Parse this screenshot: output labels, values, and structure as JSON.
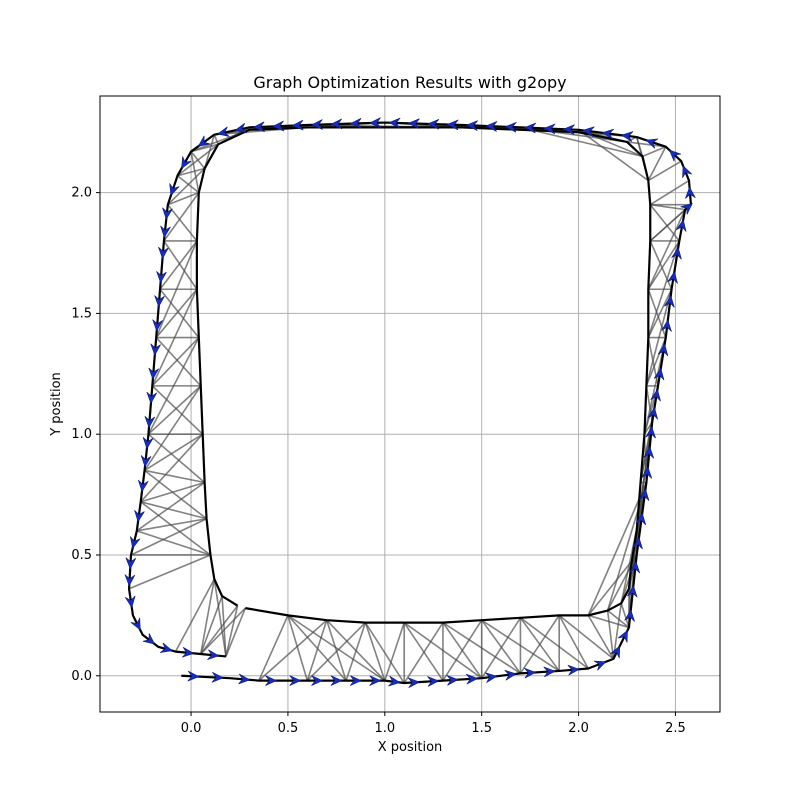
{
  "chart_data": {
    "type": "line",
    "title": "Graph Optimization Results with g2opy",
    "xlabel": "X position",
    "ylabel": "Y position",
    "xlim": [
      -0.47,
      2.73
    ],
    "ylim": [
      -0.15,
      2.4
    ],
    "xticks": [
      0.0,
      0.5,
      1.0,
      1.5,
      2.0,
      2.5
    ],
    "xtick_labels": [
      "0.0",
      "0.5",
      "1.0",
      "1.5",
      "2.0",
      "2.5"
    ],
    "yticks": [
      0.0,
      0.5,
      1.0,
      1.5,
      2.0
    ],
    "ytick_labels": [
      "0.0",
      "0.5",
      "1.0",
      "1.5",
      "2.0"
    ],
    "grid": true,
    "colors": {
      "trajectory": "#000000",
      "arrows": "#1a2db5",
      "arrow_edge": "#0b1a7a",
      "constraints": "#4d4d4d",
      "grid": "#b0b0b0"
    },
    "series": [
      {
        "role": "outer_trajectory",
        "x": [
          -0.05,
          0.2,
          0.35,
          0.6,
          0.8,
          1.0,
          1.1,
          1.3,
          1.5,
          1.7,
          1.9,
          2.05,
          2.18,
          2.26,
          2.3,
          2.35,
          2.38,
          2.41,
          2.45,
          2.48,
          2.52,
          2.55,
          2.58,
          2.57,
          2.53,
          2.45,
          2.3,
          2.0,
          1.7,
          1.4,
          1.0,
          0.6,
          0.3,
          0.12,
          0.0,
          -0.07,
          -0.12,
          -0.14,
          -0.16,
          -0.18,
          -0.2,
          -0.22,
          -0.24,
          -0.26,
          -0.28,
          -0.31,
          -0.32,
          -0.3,
          -0.25,
          -0.17,
          -0.08,
          0.05,
          0.18
        ],
        "y": [
          0.0,
          -0.01,
          -0.02,
          -0.02,
          -0.02,
          -0.02,
          -0.03,
          -0.02,
          -0.01,
          0.01,
          0.02,
          0.03,
          0.07,
          0.2,
          0.5,
          0.8,
          1.05,
          1.2,
          1.4,
          1.6,
          1.8,
          1.93,
          1.95,
          2.05,
          2.13,
          2.19,
          2.23,
          2.26,
          2.27,
          2.28,
          2.29,
          2.28,
          2.27,
          2.24,
          2.17,
          2.07,
          1.95,
          1.8,
          1.6,
          1.4,
          1.2,
          1.0,
          0.85,
          0.72,
          0.6,
          0.5,
          0.36,
          0.25,
          0.17,
          0.12,
          0.1,
          0.09,
          0.08
        ]
      },
      {
        "role": "inner_trajectory",
        "x": [
          0.28,
          0.5,
          0.7,
          0.9,
          1.1,
          1.3,
          1.5,
          1.7,
          1.9,
          2.05,
          2.15,
          2.22,
          2.26,
          2.27,
          2.3,
          2.32,
          2.34,
          2.35,
          2.36,
          2.36,
          2.37,
          2.37,
          2.36,
          2.33,
          2.25,
          2.0,
          1.7,
          1.4,
          1.0,
          0.6,
          0.3,
          0.14,
          0.07,
          0.04,
          0.03,
          0.03,
          0.04,
          0.05,
          0.06,
          0.07,
          0.08,
          0.1,
          0.12,
          0.16,
          0.24
        ],
        "y": [
          0.28,
          0.25,
          0.23,
          0.22,
          0.22,
          0.22,
          0.23,
          0.24,
          0.25,
          0.25,
          0.27,
          0.3,
          0.36,
          0.45,
          0.6,
          0.8,
          1.0,
          1.2,
          1.4,
          1.6,
          1.8,
          1.95,
          2.05,
          2.15,
          2.21,
          2.25,
          2.26,
          2.27,
          2.27,
          2.27,
          2.26,
          2.2,
          2.1,
          2.0,
          1.8,
          1.6,
          1.4,
          1.2,
          1.0,
          0.8,
          0.65,
          0.5,
          0.4,
          0.33,
          0.29
        ]
      }
    ]
  }
}
